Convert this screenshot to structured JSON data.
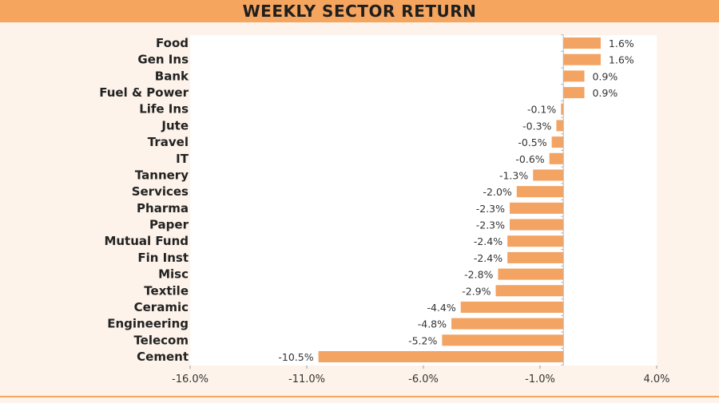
{
  "colors": {
    "background": "#fdf3ea",
    "header": "#f5a55e",
    "bar": "#f3a362",
    "plot_area": "#ffffff"
  },
  "chart_data": {
    "type": "bar",
    "orientation": "horizontal",
    "title": "WEEKLY SECTOR RETURN",
    "categories": [
      "Food",
      "Gen Ins",
      "Bank",
      "Fuel & Power",
      "Life Ins",
      "Jute",
      "Travel",
      "IT",
      "Tannery",
      "Services",
      "Pharma",
      "Paper",
      "Mutual Fund",
      "Fin Inst",
      "Misc",
      "Textile",
      "Ceramic",
      "Engineering",
      "Telecom",
      "Cement"
    ],
    "values": [
      1.6,
      1.6,
      0.9,
      0.9,
      -0.1,
      -0.3,
      -0.5,
      -0.6,
      -1.3,
      -2.0,
      -2.3,
      -2.3,
      -2.4,
      -2.4,
      -2.8,
      -2.9,
      -4.4,
      -4.8,
      -5.2,
      -10.5
    ],
    "value_labels": [
      "1.6%",
      "1.6%",
      "0.9%",
      "0.9%",
      "-0.1%",
      "-0.3%",
      "-0.5%",
      "-0.6%",
      "-1.3%",
      "-2.0%",
      "-2.3%",
      "-2.3%",
      "-2.4%",
      "-2.4%",
      "-2.8%",
      "-2.9%",
      "-4.4%",
      "-4.8%",
      "-5.2%",
      "-10.5%"
    ],
    "xlim": [
      -16,
      4
    ],
    "xticks": [
      -16,
      -11,
      -6,
      -1,
      4
    ],
    "xtick_labels": [
      "-16.0%",
      "-11.0%",
      "-6.0%",
      "-1.0%",
      "4.0%"
    ],
    "grid": false,
    "legend": "none"
  }
}
